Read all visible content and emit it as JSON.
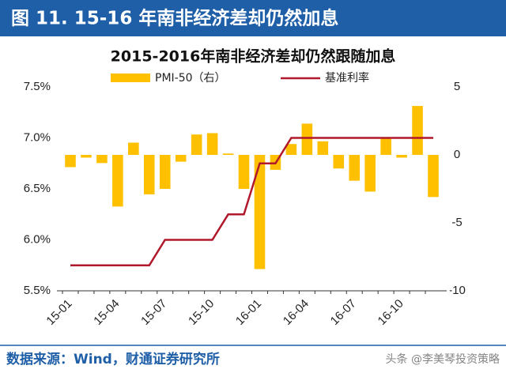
{
  "header": {
    "title": "图 11. 15-16 年南非经济差却仍然加息"
  },
  "chart_data": {
    "type": "combo",
    "title": "2015-2016年南非经济差却仍然跟随加息",
    "categories": [
      "15-01",
      null,
      null,
      "15-04",
      null,
      null,
      "15-07",
      null,
      null,
      "15-10",
      null,
      null,
      "16-01",
      null,
      null,
      "16-04",
      null,
      null,
      "16-07",
      null,
      null,
      "16-10",
      null,
      null
    ],
    "series": [
      {
        "name": "PMI-50（右）",
        "type": "bar",
        "axis": "y2",
        "color": "#FFC000",
        "values": [
          -0.9,
          -0.2,
          -0.6,
          -3.8,
          0.9,
          -2.9,
          -2.5,
          -0.5,
          1.5,
          1.6,
          0.1,
          -2.5,
          -8.4,
          -1.1,
          0.8,
          2.3,
          1.0,
          -1.0,
          -1.9,
          -2.7,
          1.2,
          -0.2,
          3.6,
          -3.1
        ]
      },
      {
        "name": "基准利率",
        "type": "line",
        "color": "#B0192B",
        "values": [
          5.75,
          5.75,
          5.75,
          5.75,
          5.75,
          5.75,
          6.0,
          6.0,
          6.0,
          6.0,
          6.25,
          6.25,
          6.75,
          6.75,
          7.0,
          7.0,
          7.0,
          7.0,
          7.0,
          7.0,
          7.0,
          7.0,
          7.0,
          7.0
        ]
      }
    ],
    "ylim": [
      5.5,
      7.5
    ],
    "yticks": [
      {
        "value": 5.5,
        "label": "5.5%"
      },
      {
        "value": 6.0,
        "label": "6.0%"
      },
      {
        "value": 6.5,
        "label": "6.5%"
      },
      {
        "value": 7.0,
        "label": "7.0%"
      },
      {
        "value": 7.5,
        "label": "7.5%"
      }
    ],
    "y2lim": [
      -10,
      5
    ],
    "y2ticks": [
      -10,
      -5,
      0,
      5
    ]
  },
  "footer": {
    "source": "数据来源：Wind，财通证券研究所",
    "watermark": "头条 @李美琴投资策略"
  }
}
